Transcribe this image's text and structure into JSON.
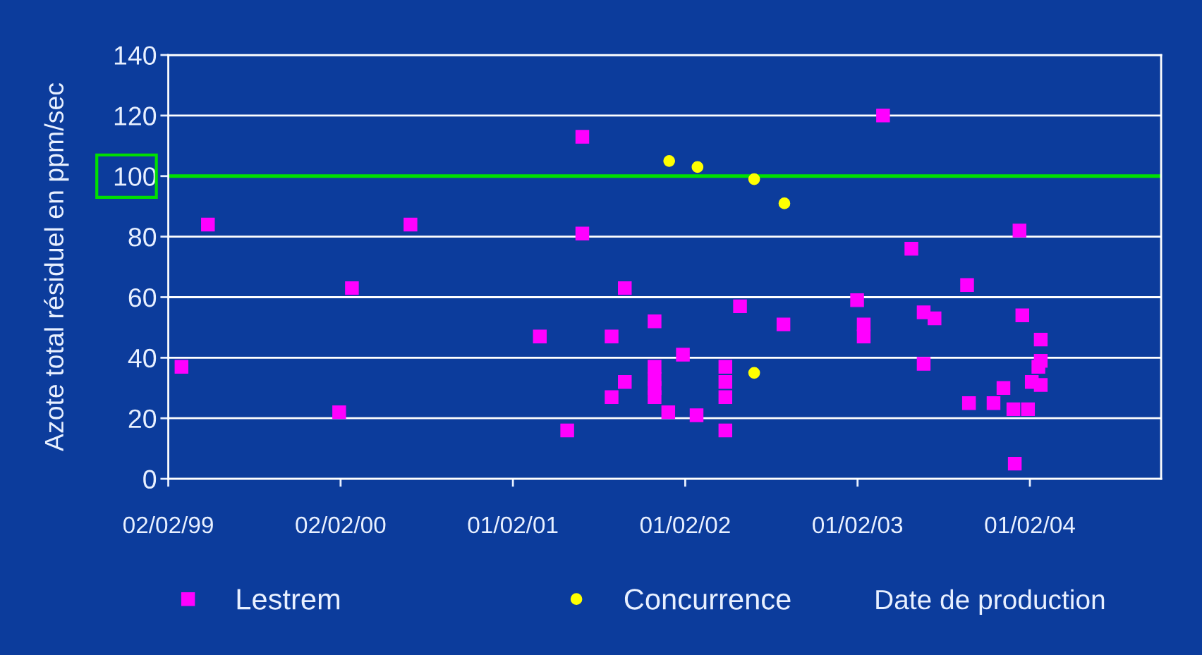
{
  "chart_data": {
    "type": "scatter",
    "ylabel": "Azote total résiduel en ppm/sec",
    "xlabel": "Date de production",
    "xlim": [
      "1999-02-02",
      "2004-11-05"
    ],
    "ylim": [
      0,
      140
    ],
    "yticks": [
      0,
      20,
      40,
      60,
      80,
      100,
      120,
      140
    ],
    "xticks": [
      {
        "value": "1999-02-02",
        "label": "02/02/99"
      },
      {
        "value": "2000-02-02",
        "label": "02/02/00"
      },
      {
        "value": "2001-02-01",
        "label": "01/02/01"
      },
      {
        "value": "2002-02-01",
        "label": "01/02/02"
      },
      {
        "value": "2003-02-01",
        "label": "01/02/03"
      },
      {
        "value": "2004-02-01",
        "label": "01/02/04"
      }
    ],
    "grid": "y",
    "legend": "bottom left",
    "ref_lines": [
      {
        "axis": "y",
        "value": 100,
        "color": "#00e000"
      }
    ],
    "series": [
      {
        "name": "Lestrem",
        "color": "#ff00ff",
        "marker": "square",
        "x": [
          "1999-03-02",
          "1999-04-27",
          "2000-01-30",
          "2000-02-26",
          "2000-06-29",
          "2001-03-30",
          "2001-05-27",
          "2001-06-28",
          "2001-06-28",
          "2001-08-29",
          "2001-08-29",
          "2001-09-26",
          "2001-09-26",
          "2001-11-28",
          "2001-11-28",
          "2001-11-28",
          "2001-11-28",
          "2001-11-28",
          "2001-12-27",
          "2002-01-27",
          "2002-02-25",
          "2002-04-27",
          "2002-04-27",
          "2002-04-27",
          "2002-04-27",
          "2002-05-28",
          "2002-08-28",
          "2003-01-31",
          "2003-02-14",
          "2003-02-14",
          "2003-03-27",
          "2003-05-26",
          "2003-06-21",
          "2003-06-21",
          "2003-07-14",
          "2003-09-21",
          "2003-09-25",
          "2003-11-16",
          "2003-12-07",
          "2003-12-28",
          "2003-12-31",
          "2004-01-10",
          "2004-01-16",
          "2004-01-28",
          "2004-02-05",
          "2004-02-19",
          "2004-02-24",
          "2004-02-24",
          "2004-02-24"
        ],
        "values": [
          37,
          84,
          22,
          63,
          84,
          47,
          16,
          113,
          81,
          47,
          27,
          32,
          63,
          52,
          37,
          33,
          30,
          27,
          22,
          41,
          21,
          37,
          32,
          27,
          16,
          57,
          51,
          59,
          51,
          47,
          120,
          76,
          55,
          38,
          53,
          64,
          25,
          25,
          30,
          23,
          5,
          82,
          54,
          23,
          32,
          37,
          46,
          39,
          31
        ]
      },
      {
        "name": "Concurrence",
        "color": "#ffff00",
        "marker": "circle",
        "x": [
          "2001-12-29",
          "2002-02-27",
          "2002-06-27",
          "2002-06-27",
          "2002-08-30"
        ],
        "values": [
          105,
          103,
          99,
          35,
          91
        ]
      }
    ]
  }
}
